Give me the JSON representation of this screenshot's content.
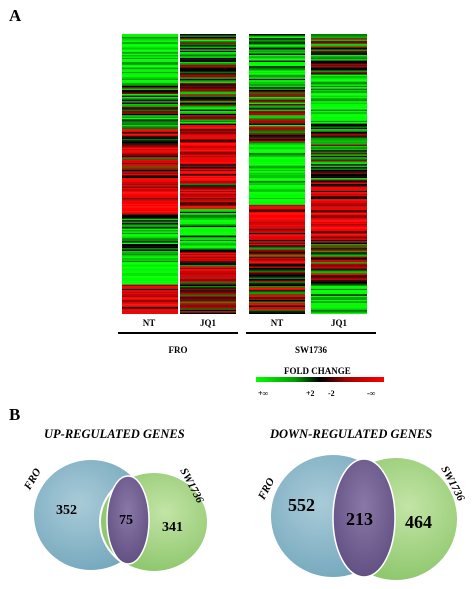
{
  "panel_a": {
    "letter": "A",
    "columns": [
      {
        "label": "NT"
      },
      {
        "label": "JQ1"
      },
      {
        "label": "NT"
      },
      {
        "label": "JQ1"
      }
    ],
    "groups": [
      {
        "label": "FRO"
      },
      {
        "label": "SW1736"
      }
    ],
    "legend": {
      "title": "FOLD CHANGE",
      "ticks": [
        "+∞",
        "+2",
        "-2",
        "-∞"
      ]
    },
    "colors": {
      "up": "#00ff00",
      "down": "#ff0000",
      "mid": "#000000"
    }
  },
  "panel_b": {
    "letter": "B",
    "up": {
      "title": "UP-REGULATED GENES",
      "set_a": "FRO",
      "set_b": "SW1736",
      "only_a": "352",
      "both": "75",
      "only_b": "341"
    },
    "down": {
      "title": "DOWN-REGULATED GENES",
      "set_a": "FRO",
      "set_b": "SW1736",
      "only_a": "552",
      "both": "213",
      "only_b": "464"
    },
    "colors": {
      "set_a": "#7fb0c4",
      "set_b": "#9ed07a",
      "overlap": "#6e5a8f"
    }
  }
}
